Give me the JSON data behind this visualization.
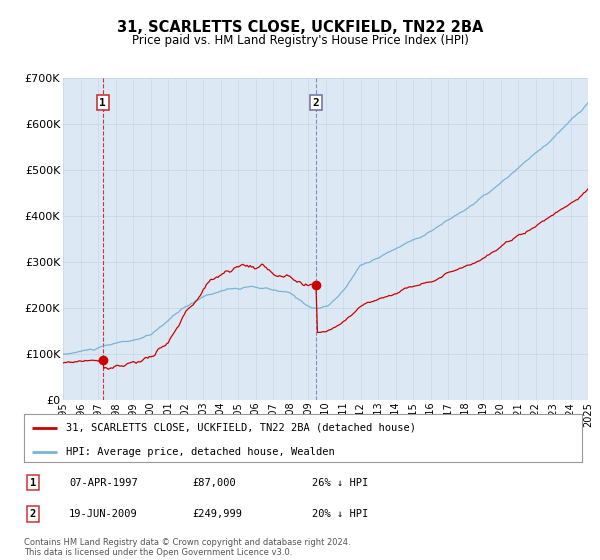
{
  "title": "31, SCARLETTS CLOSE, UCKFIELD, TN22 2BA",
  "subtitle": "Price paid vs. HM Land Registry's House Price Index (HPI)",
  "bg_color": "#dce9f5",
  "hpi_color": "#7ab3d4",
  "price_color": "#cc0000",
  "grid_color": "#c8d8e8",
  "ylim": [
    0,
    700000
  ],
  "yticks": [
    0,
    100000,
    200000,
    300000,
    400000,
    500000,
    600000,
    700000
  ],
  "ytick_labels": [
    "£0",
    "£100K",
    "£200K",
    "£300K",
    "£400K",
    "£500K",
    "£600K",
    "£700K"
  ],
  "x_start_year": 1995,
  "x_end_year": 2025,
  "sale1_year": 1997.27,
  "sale1_price": 87000,
  "sale2_year": 2009.47,
  "sale2_price": 249999,
  "legend_price_label": "31, SCARLETTS CLOSE, UCKFIELD, TN22 2BA (detached house)",
  "legend_hpi_label": "HPI: Average price, detached house, Wealden",
  "footnote": "Contains HM Land Registry data © Crown copyright and database right 2024.\nThis data is licensed under the Open Government Licence v3.0.",
  "table_rows": [
    {
      "num": "1",
      "date": "07-APR-1997",
      "price": "£87,000",
      "hpi": "26% ↓ HPI"
    },
    {
      "num": "2",
      "date": "19-JUN-2009",
      "price": "£249,999",
      "hpi": "20% ↓ HPI"
    }
  ]
}
